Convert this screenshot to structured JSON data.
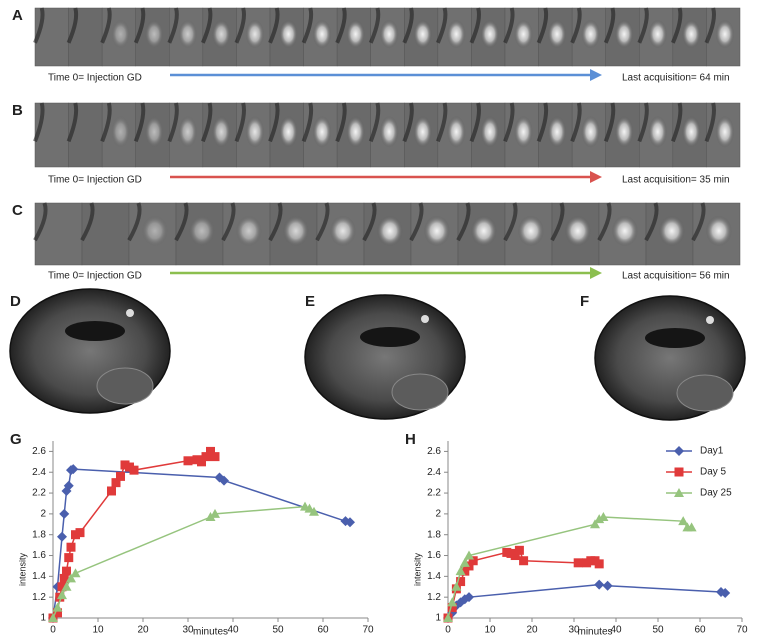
{
  "strips": [
    {
      "label": "A",
      "start": "Time 0= Injection GD",
      "end": "Last acquisition= 64 min",
      "color": "#5b8fd6"
    },
    {
      "label": "B",
      "start": "Time 0= Injection GD",
      "end": "Last acquisition= 35 min",
      "color": "#d9534f"
    },
    {
      "label": "C",
      "start": "Time 0= Injection GD",
      "end": "Last acquisition= 56 min",
      "color": "#8cbf4f"
    }
  ],
  "brain_panels": [
    "D",
    "E",
    "F"
  ],
  "chart_data": [
    {
      "type": "line",
      "label": "G",
      "x_label": "minutes",
      "y_label": "intensity",
      "xlim": [
        0,
        70
      ],
      "xticks": [
        0,
        10,
        20,
        30,
        40,
        50,
        60,
        70
      ],
      "ylim": [
        1,
        2.7
      ],
      "yticks": [
        1,
        1.2,
        1.4,
        1.6,
        1.8,
        2,
        2.2,
        2.4,
        2.6
      ],
      "legend": false,
      "series": [
        {
          "color": "#4a5fad",
          "marker": "diamond",
          "x": [
            0,
            1,
            2,
            2.5,
            3,
            3.5,
            4,
            4.5,
            37,
            38,
            65,
            66
          ],
          "values": [
            1,
            1.3,
            1.78,
            2,
            2.22,
            2.27,
            2.42,
            2.43,
            2.35,
            2.32,
            1.93,
            1.92
          ]
        },
        {
          "color": "#e03a3a",
          "marker": "square",
          "x": [
            0,
            1,
            1.5,
            2,
            2.5,
            3,
            3.5,
            4,
            5,
            6,
            13,
            14,
            15,
            16,
            17,
            18,
            30,
            32,
            33,
            34,
            35,
            36
          ],
          "values": [
            1,
            1.05,
            1.2,
            1.3,
            1.38,
            1.45,
            1.58,
            1.68,
            1.8,
            1.82,
            2.22,
            2.3,
            2.36,
            2.47,
            2.45,
            2.42,
            2.51,
            2.52,
            2.5,
            2.55,
            2.6,
            2.55
          ]
        },
        {
          "color": "#96c47e",
          "marker": "triangle",
          "x": [
            0,
            1,
            2,
            3,
            4,
            5,
            35,
            36,
            56,
            57,
            58
          ],
          "values": [
            1,
            1.1,
            1.22,
            1.3,
            1.38,
            1.43,
            1.97,
            2,
            2.07,
            2.05,
            2.02
          ]
        }
      ]
    },
    {
      "type": "line",
      "label": "H",
      "x_label": "minutes",
      "y_label": "intensity",
      "xlim": [
        0,
        70
      ],
      "xticks": [
        0,
        10,
        20,
        30,
        40,
        50,
        60,
        70
      ],
      "ylim": [
        1,
        2.7
      ],
      "yticks": [
        1,
        1.2,
        1.4,
        1.6,
        1.8,
        2,
        2.2,
        2.4,
        2.6
      ],
      "legend": "top-right",
      "series": [
        {
          "name": "Day1",
          "color": "#4a5fad",
          "marker": "diamond",
          "x": [
            0,
            1,
            2,
            3,
            4,
            5,
            36,
            38,
            65,
            66
          ],
          "values": [
            1,
            1.05,
            1.12,
            1.15,
            1.18,
            1.2,
            1.32,
            1.31,
            1.25,
            1.24
          ]
        },
        {
          "name": "Day 5",
          "color": "#e03a3a",
          "marker": "square",
          "x": [
            0,
            1,
            2,
            3,
            4,
            5,
            6,
            14,
            15,
            16,
            17,
            18,
            31,
            33,
            34,
            35,
            36
          ],
          "values": [
            1,
            1.1,
            1.28,
            1.35,
            1.45,
            1.5,
            1.55,
            1.63,
            1.62,
            1.6,
            1.65,
            1.55,
            1.53,
            1.53,
            1.55,
            1.55,
            1.52
          ]
        },
        {
          "name": "Day 25",
          "color": "#96c47e",
          "marker": "triangle",
          "x": [
            0,
            1,
            2,
            3,
            4,
            5,
            35,
            36,
            37,
            56,
            57,
            58
          ],
          "values": [
            1,
            1.15,
            1.3,
            1.45,
            1.53,
            1.6,
            1.9,
            1.95,
            1.97,
            1.93,
            1.87,
            1.87
          ]
        }
      ]
    }
  ]
}
